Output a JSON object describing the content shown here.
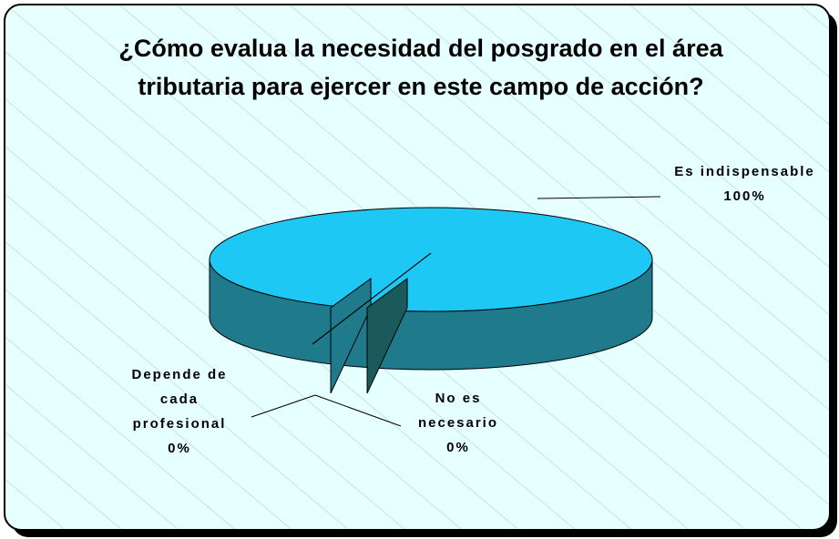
{
  "chart_data": {
    "type": "pie",
    "title": "¿Cómo evalua la necesidad del posgrado en el área tributaria para ejercer en este campo de acción?",
    "categories": [
      "Es indispensable",
      "No es necesario",
      "Depende de cada profesional"
    ],
    "values": [
      100,
      0,
      0
    ],
    "value_labels": [
      "100%",
      "0%",
      "0%"
    ],
    "colors": [
      "#1ec8f5",
      "#1f7a8c",
      "#1a5a5a"
    ]
  }
}
